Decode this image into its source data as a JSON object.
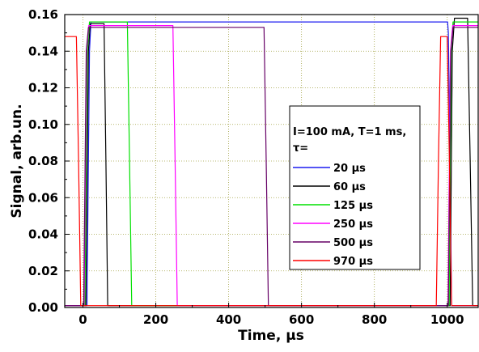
{
  "chart_data": {
    "type": "line",
    "xlabel": "Time, µs",
    "ylabel": "Signal, arb.un.",
    "xlim": [
      -50,
      1085
    ],
    "ylim": [
      0,
      0.16
    ],
    "xticks": [
      0,
      200,
      400,
      600,
      800,
      1000
    ],
    "yticks": [
      0.0,
      0.02,
      0.04,
      0.06,
      0.08,
      0.1,
      0.12,
      0.14,
      0.16
    ],
    "ytick_labels": [
      "0.00",
      "0.02",
      "0.04",
      "0.06",
      "0.08",
      "0.10",
      "0.12",
      "0.14",
      "0.16"
    ],
    "grid": true,
    "legend": {
      "position": "center-right",
      "title_line1": "I=100 mA, T=1 ms,",
      "title_line2": "τ="
    },
    "series": [
      {
        "name": "20 µs",
        "color": "#1c1cf0",
        "x": [
          -50,
          11,
          18,
          22,
          1001,
          1003,
          1008,
          1012,
          1085
        ],
        "y": [
          0.001,
          0.001,
          0.14,
          0.156,
          0.156,
          0.15,
          0.08,
          0.001,
          0.001
        ]
      },
      {
        "name": "60 µs",
        "color": "#000000",
        "x": [
          -50,
          8,
          15,
          20,
          58,
          63,
          68,
          1008,
          1014,
          1020,
          1056,
          1063,
          1070,
          1085
        ],
        "y": [
          0.001,
          0.001,
          0.14,
          0.155,
          0.155,
          0.08,
          0.001,
          0.001,
          0.14,
          0.158,
          0.158,
          0.08,
          0.001,
          0.001
        ]
      },
      {
        "name": "125 µs",
        "color": "#00e000",
        "x": [
          -50,
          5,
          12,
          18,
          122,
          128,
          134,
          1005,
          1011,
          1016,
          1085
        ],
        "y": [
          0.001,
          0.001,
          0.14,
          0.156,
          0.156,
          0.08,
          0.001,
          0.001,
          0.14,
          0.156,
          0.156
        ]
      },
      {
        "name": "250 µs",
        "color": "#ff00ff",
        "x": [
          -50,
          3,
          10,
          16,
          247,
          253,
          259,
          1002,
          1009,
          1015,
          1085
        ],
        "y": [
          0.001,
          0.001,
          0.14,
          0.154,
          0.154,
          0.08,
          0.001,
          0.001,
          0.14,
          0.154,
          0.154
        ]
      },
      {
        "name": "500 µs",
        "color": "#660066",
        "x": [
          -50,
          2,
          9,
          15,
          497,
          503,
          509,
          1003,
          1010,
          1016,
          1085
        ],
        "y": [
          0.001,
          0.001,
          0.14,
          0.153,
          0.153,
          0.08,
          0.001,
          0.001,
          0.14,
          0.153,
          0.153
        ]
      },
      {
        "name": "970 µs",
        "color": "#ff0000",
        "x": [
          -50,
          -18,
          -12,
          -6,
          970,
          976,
          982,
          1000,
          1006,
          1012,
          1085
        ],
        "y": [
          0.148,
          0.148,
          0.08,
          0.001,
          0.001,
          0.08,
          0.148,
          0.148,
          0.08,
          0.001,
          0.001
        ]
      }
    ]
  }
}
